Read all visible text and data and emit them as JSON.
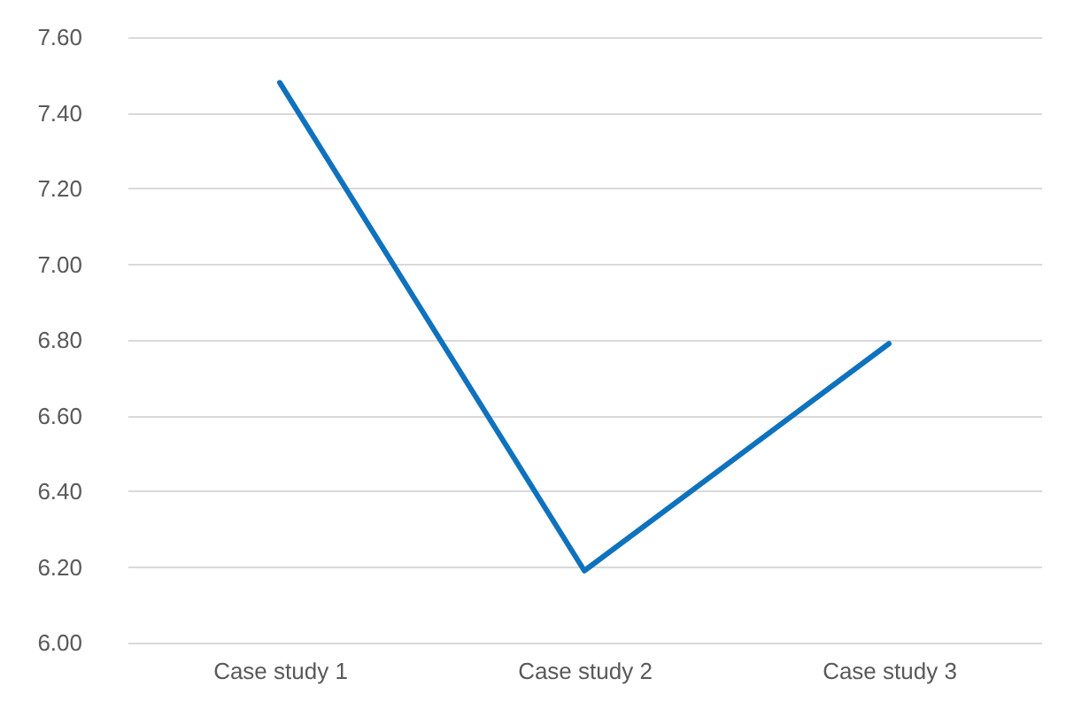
{
  "chart_data": {
    "type": "line",
    "categories": [
      "Case study 1",
      "Case study 2",
      "Case study 3"
    ],
    "series": [
      {
        "color": "#0f72bd",
        "values": [
          7.48,
          6.19,
          6.79
        ]
      }
    ],
    "ylim": [
      6.0,
      7.6
    ],
    "yticks": [
      {
        "value": 6.0,
        "label": "6.00"
      },
      {
        "value": 6.2,
        "label": "6.20"
      },
      {
        "value": 6.4,
        "label": "6.40"
      },
      {
        "value": 6.6,
        "label": "6.60"
      },
      {
        "value": 6.8,
        "label": "6.80"
      },
      {
        "value": 7.0,
        "label": "7.00"
      },
      {
        "value": 7.2,
        "label": "7.20"
      },
      {
        "value": 7.4,
        "label": "7.40"
      },
      {
        "value": 7.6,
        "label": "7.60"
      }
    ],
    "grid": "y",
    "marker": "none",
    "line_style": "solid"
  }
}
